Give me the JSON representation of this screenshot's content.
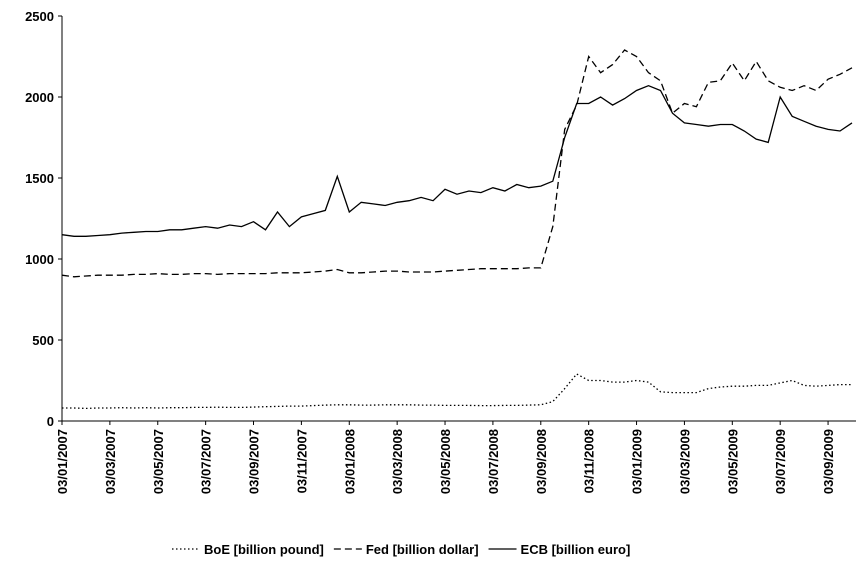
{
  "chart_data": {
    "type": "line",
    "categories": [
      "03/01/2007",
      null,
      null,
      null,
      "03/03/2007",
      null,
      null,
      null,
      "03/05/2007",
      null,
      null,
      null,
      "03/07/2007",
      null,
      null,
      null,
      "03/09/2007",
      null,
      null,
      null,
      "03/11/2007",
      null,
      null,
      null,
      "03/01/2008",
      null,
      null,
      null,
      "03/03/2008",
      null,
      null,
      null,
      "03/05/2008",
      null,
      null,
      null,
      "03/07/2008",
      null,
      null,
      null,
      "03/09/2008",
      null,
      null,
      null,
      "03/11/2008",
      null,
      null,
      null,
      "03/01/2009",
      null,
      null,
      null,
      "03/03/2009",
      null,
      null,
      null,
      "03/05/2009",
      null,
      null,
      null,
      "03/07/2009",
      null,
      null,
      null,
      "03/09/2009",
      null,
      null
    ],
    "series": [
      {
        "name": "BoE [billion pound]",
        "color": "#000000",
        "style": "dotted",
        "values": [
          80,
          80,
          78,
          80,
          80,
          82,
          80,
          82,
          80,
          82,
          82,
          84,
          84,
          85,
          84,
          84,
          86,
          88,
          90,
          92,
          92,
          95,
          98,
          100,
          100,
          98,
          98,
          100,
          100,
          100,
          98,
          98,
          96,
          96,
          96,
          95,
          95,
          96,
          96,
          98,
          100,
          120,
          200,
          290,
          250,
          250,
          240,
          240,
          250,
          240,
          180,
          175,
          175,
          175,
          200,
          210,
          215,
          215,
          220,
          220,
          235,
          250,
          220,
          215,
          220,
          225,
          225
        ]
      },
      {
        "name": "Fed [billion dollar]",
        "color": "#000000",
        "style": "dashed",
        "values": [
          900,
          890,
          895,
          900,
          900,
          900,
          905,
          905,
          910,
          905,
          905,
          910,
          910,
          905,
          910,
          910,
          910,
          910,
          915,
          915,
          915,
          920,
          925,
          935,
          915,
          915,
          920,
          925,
          925,
          920,
          920,
          920,
          925,
          930,
          935,
          940,
          940,
          940,
          940,
          945,
          945,
          1200,
          1800,
          1950,
          2250,
          2150,
          2200,
          2290,
          2250,
          2150,
          2100,
          1900,
          1960,
          1940,
          2090,
          2100,
          2210,
          2100,
          2220,
          2100,
          2060,
          2040,
          2070,
          2040,
          2110,
          2140,
          2180
        ]
      },
      {
        "name": "ECB [billion euro]",
        "color": "#000000",
        "style": "solid",
        "values": [
          1150,
          1140,
          1140,
          1145,
          1150,
          1160,
          1165,
          1170,
          1170,
          1180,
          1180,
          1190,
          1200,
          1190,
          1210,
          1200,
          1230,
          1180,
          1290,
          1200,
          1260,
          1280,
          1300,
          1510,
          1290,
          1350,
          1340,
          1330,
          1350,
          1360,
          1380,
          1360,
          1430,
          1400,
          1420,
          1410,
          1440,
          1420,
          1460,
          1440,
          1450,
          1480,
          1750,
          1960,
          1960,
          2000,
          1950,
          1990,
          2040,
          2070,
          2040,
          1900,
          1840,
          1830,
          1820,
          1830,
          1830,
          1790,
          1740,
          1720,
          2000,
          1880,
          1850,
          1820,
          1800,
          1790,
          1840
        ]
      }
    ],
    "ylim": [
      0,
      2500
    ],
    "yticks": [
      0,
      500,
      1000,
      1500,
      2000,
      2500
    ],
    "grid": false,
    "legend": "bottom"
  }
}
